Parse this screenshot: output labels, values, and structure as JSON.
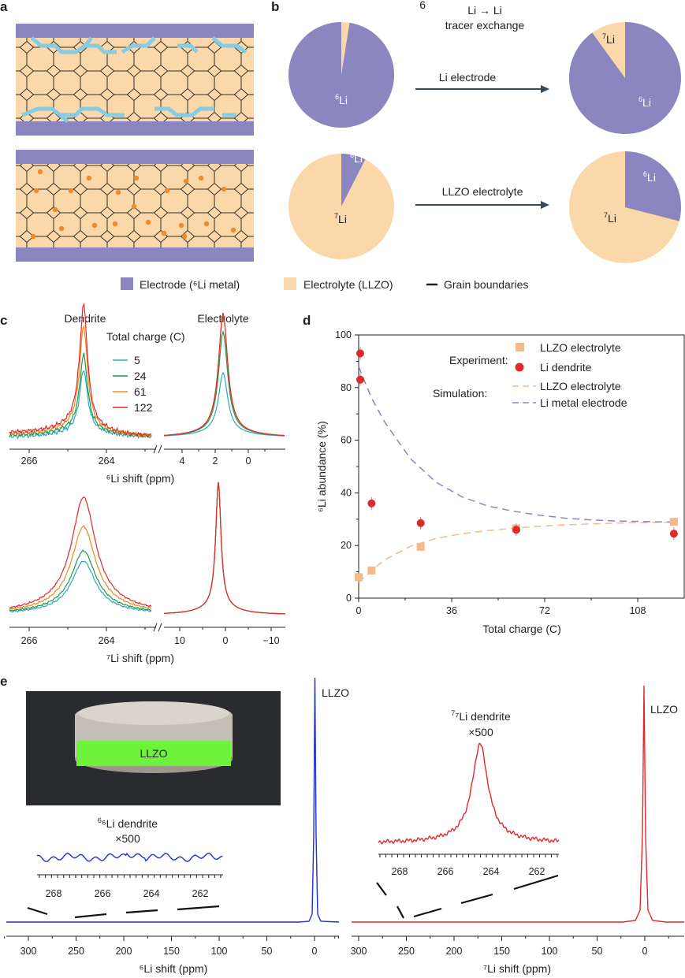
{
  "panels": {
    "a": {
      "label": "a"
    },
    "b": {
      "label": "b",
      "title_line1": "Li → Li",
      "title_line2": "tracer exchange",
      "arrow_top": "Li electrode",
      "arrow_bottom": "LLZO electrolyte",
      "pies": [
        {
          "name": "electrode-before",
          "six_frac": 0.975
        },
        {
          "name": "electrode-after",
          "six_frac": 0.9
        },
        {
          "name": "electrolyte-before",
          "six_frac": 0.075
        },
        {
          "name": "electrolyte-after",
          "six_frac": 0.29
        }
      ],
      "labels": {
        "li6": "Li",
        "li7": "Li",
        "sup6": "6",
        "sup7": "7"
      }
    },
    "legend": {
      "electrode": "Electrode (⁶Li metal)",
      "electrolyte": "Electrolyte (LLZO)",
      "gb": "Grain boundaries"
    },
    "c": {
      "label": "c",
      "dendrite": "Dendrite",
      "electrolyte": "Electrolyte",
      "total_charge": "Total charge (C)",
      "charges": [
        "5",
        "24",
        "61",
        "122"
      ],
      "colors": [
        "#2aa7c9",
        "#1f9a4b",
        "#f08a1c",
        "#e0292b"
      ],
      "top_xticks_left": [
        "266",
        "264"
      ],
      "top_xticks_right": [
        "4",
        "2",
        "0"
      ],
      "top_xlabel": "⁶Li shift (ppm)",
      "bot_xticks_left": [
        "266",
        "264"
      ],
      "bot_xticks_right": [
        "10",
        "0",
        "−10"
      ],
      "bot_xlabel": "⁷Li shift (ppm)"
    },
    "d": {
      "label": "d",
      "chart_data": {
        "type": "scatter",
        "xlabel": "Total charge (C)",
        "ylabel": "⁶Li abundance (%)",
        "xlim": [
          0,
          126
        ],
        "ylim": [
          0,
          100
        ],
        "xticks": [
          0,
          36,
          72,
          108
        ],
        "yticks": [
          0,
          20,
          40,
          60,
          80,
          100
        ],
        "series": [
          {
            "name": "LLZO electrolyte",
            "kind": "experiment",
            "marker": "square",
            "color": "#f5b98a",
            "x": [
              0,
              5,
              24,
              61,
              122
            ],
            "y": [
              8,
              10.5,
              19.5,
              26.5,
              29
            ]
          },
          {
            "name": "Li dendrite",
            "kind": "experiment",
            "marker": "circle",
            "color": "#e0292b",
            "x": [
              0,
              0,
              5,
              24,
              61,
              122
            ],
            "y": [
              93,
              83,
              36,
              28.5,
              26,
              24.5
            ]
          },
          {
            "name": "LLZO electrolyte",
            "kind": "simulation",
            "dash": true,
            "color": "#f5b98a",
            "x": [
              0,
              5,
              10,
              20,
              30,
              40,
              50,
              60,
              70,
              80,
              90,
              100,
              110,
              122
            ],
            "y": [
              6,
              10.5,
              14.5,
              19.7,
              22.7,
              24.5,
              25.7,
              26.6,
              27.3,
              27.8,
              28.2,
              28.5,
              28.7,
              28.9
            ]
          },
          {
            "name": "Li metal electrode",
            "kind": "simulation",
            "dash": true,
            "color": "#8a86c2",
            "x": [
              0,
              5,
              10,
              20,
              30,
              40,
              50,
              60,
              70,
              80,
              90,
              100,
              110,
              122
            ],
            "y": [
              88,
              76,
              67,
              53,
              44,
              38.5,
              35,
              33,
              31.5,
              30.4,
              29.7,
              29.3,
              29.1,
              28.9
            ]
          }
        ],
        "legend": {
          "experiment": "Experiment:",
          "simulation": "Simulation:",
          "items": [
            "LLZO electrolyte",
            "Li dendrite",
            "LLZO electrolyte",
            "Li metal electrode"
          ]
        }
      }
    },
    "e": {
      "label": "e",
      "llzo": "LLZO",
      "photo_label": "LLZO",
      "left_inset_title": "⁶Li dendrite",
      "left_inset_factor": "×500",
      "left_inset_ticks": [
        "268",
        "266",
        "264",
        "262"
      ],
      "left_xticks": [
        "300",
        "250",
        "200",
        "150",
        "100",
        "50",
        "0"
      ],
      "left_xlabel": "⁶Li shift (ppm)",
      "right_inset_title": "⁷Li dendrite",
      "right_inset_factor": "×500",
      "right_inset_ticks": [
        "268",
        "266",
        "264",
        "262"
      ],
      "right_xticks": [
        "300",
        "250",
        "200",
        "150",
        "100",
        "50",
        "0"
      ],
      "right_xlabel": "⁷Li shift (ppm)",
      "blue": "#1f2fd6",
      "red": "#e0292b"
    }
  }
}
